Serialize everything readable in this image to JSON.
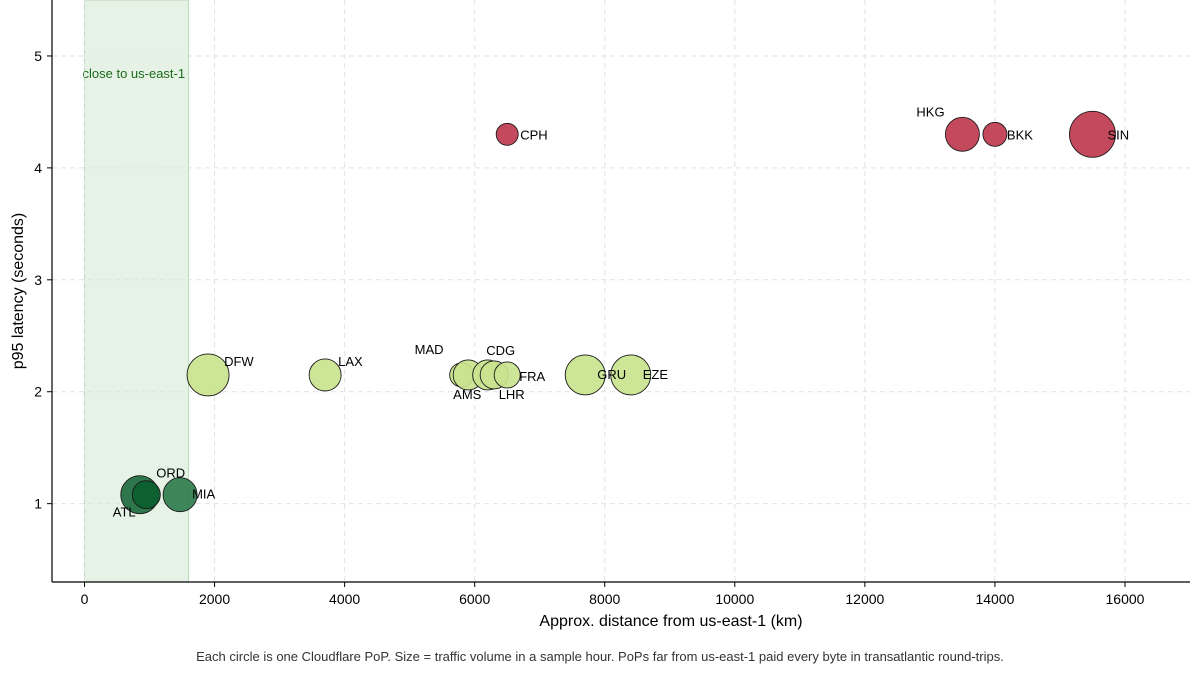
{
  "chart_data": {
    "type": "scatter",
    "title": "",
    "xlabel": "Approx. distance from us-east-1 (km)",
    "ylabel": "p95 latency (seconds)",
    "xlim": [
      -500,
      17000
    ],
    "ylim": [
      0.3,
      5.5
    ],
    "xticks": [
      0,
      2000,
      4000,
      6000,
      8000,
      10000,
      12000,
      14000,
      16000
    ],
    "yticks": [
      1,
      2,
      3,
      4,
      5
    ],
    "grid": true,
    "band": {
      "x_start": 0,
      "x_end": 1600,
      "label": "close to us-east-1",
      "color": "#cfe8cf"
    },
    "points": [
      {
        "label": "ATL",
        "x": 850,
        "y": 1.08,
        "size": 19,
        "color": "#1e6b3f"
      },
      {
        "label": "ORD",
        "x": 950,
        "y": 1.08,
        "size": 14,
        "color": "#0b5e2c"
      },
      {
        "label": "MIA",
        "x": 1470,
        "y": 1.08,
        "size": 17,
        "color": "#2e7d4d"
      },
      {
        "label": "DFW",
        "x": 1900,
        "y": 2.15,
        "size": 21,
        "color": "#c9e38e"
      },
      {
        "label": "LAX",
        "x": 3700,
        "y": 2.15,
        "size": 16,
        "color": "#c9e38e"
      },
      {
        "label": "MAD",
        "x": 5800,
        "y": 2.15,
        "size": 12,
        "color": "#c9e38e"
      },
      {
        "label": "AMS",
        "x": 5900,
        "y": 2.15,
        "size": 15,
        "color": "#c9e38e"
      },
      {
        "label": "LHR",
        "x": 6200,
        "y": 2.15,
        "size": 15,
        "color": "#c9e38e"
      },
      {
        "label": "CDG",
        "x": 6300,
        "y": 2.15,
        "size": 14,
        "color": "#c9e38e"
      },
      {
        "label": "FRA",
        "x": 6500,
        "y": 2.15,
        "size": 13,
        "color": "#c9e38e"
      },
      {
        "label": "GRU",
        "x": 7700,
        "y": 2.15,
        "size": 20,
        "color": "#c9e38e"
      },
      {
        "label": "EZE",
        "x": 8400,
        "y": 2.15,
        "size": 20,
        "color": "#c9e38e"
      },
      {
        "label": "CPH",
        "x": 6500,
        "y": 4.3,
        "size": 11,
        "color": "#c0394f"
      },
      {
        "label": "HKG",
        "x": 13500,
        "y": 4.3,
        "size": 17,
        "color": "#c0394f"
      },
      {
        "label": "BKK",
        "x": 14000,
        "y": 4.3,
        "size": 12,
        "color": "#c0394f"
      },
      {
        "label": "SIN",
        "x": 15500,
        "y": 4.3,
        "size": 23,
        "color": "#c0394f"
      }
    ],
    "caption": "Each circle is one Cloudflare PoP. Size = traffic volume in a sample hour. PoPs far from us-east-1 paid every byte in transatlantic round-trips."
  }
}
